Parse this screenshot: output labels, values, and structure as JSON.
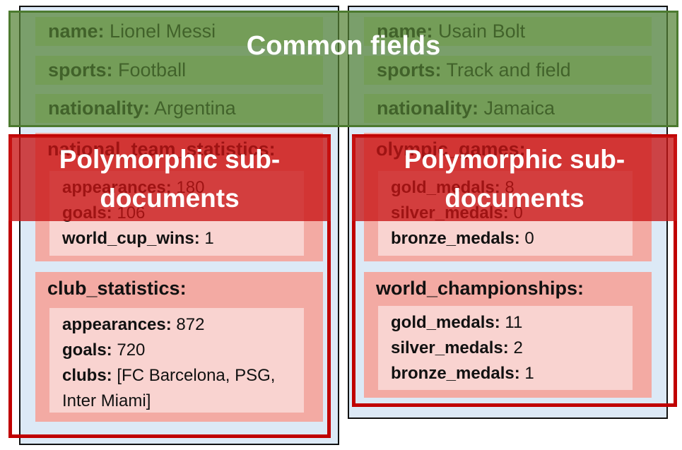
{
  "documents": [
    {
      "fields": [
        {
          "key": "name:",
          "value": "Lionel Messi"
        },
        {
          "key": "sports:",
          "value": "Football"
        },
        {
          "key": "nationality:",
          "value": "Argentina"
        }
      ],
      "subdocuments": [
        {
          "title": "national_team_statistics:",
          "fields": [
            {
              "key": "appearances:",
              "value": "180"
            },
            {
              "key": "goals:",
              "value": "106"
            },
            {
              "key": "world_cup_wins:",
              "value": "1"
            }
          ]
        },
        {
          "title": "club_statistics:",
          "fields": [
            {
              "key": "appearances:",
              "value": "872"
            },
            {
              "key": "goals:",
              "value": "720"
            },
            {
              "key": "clubs:",
              "value": "[FC Barcelona, PSG, Inter Miami]"
            }
          ]
        }
      ]
    },
    {
      "fields": [
        {
          "key": "name:",
          "value": "Usain Bolt"
        },
        {
          "key": "sports:",
          "value": "Track and field"
        },
        {
          "key": "nationality:",
          "value": "Jamaica"
        }
      ],
      "subdocuments": [
        {
          "title": "olympic_games:",
          "fields": [
            {
              "key": "gold_medals:",
              "value": "8"
            },
            {
              "key": "silver_medals:",
              "value": "0"
            },
            {
              "key": "bronze_medals:",
              "value": "0"
            }
          ]
        },
        {
          "title": "world_championships:",
          "fields": [
            {
              "key": "gold_medals:",
              "value": "11"
            },
            {
              "key": "silver_medals:",
              "value": "2"
            },
            {
              "key": "bronze_medals:",
              "value": "1"
            }
          ]
        }
      ]
    }
  ],
  "overlays": {
    "common": "Common fields",
    "polymorphic": [
      "Polymorphic sub-documents",
      "Polymorphic sub-documents"
    ]
  }
}
